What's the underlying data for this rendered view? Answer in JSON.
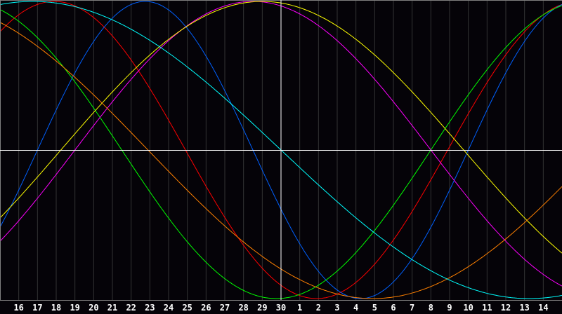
{
  "chart_data": {
    "type": "line",
    "title": "",
    "xlabel": "",
    "ylabel": "",
    "x_tick_labels": [
      "16",
      "17",
      "18",
      "19",
      "20",
      "21",
      "22",
      "23",
      "24",
      "25",
      "26",
      "27",
      "28",
      "29",
      "30",
      "1",
      "2",
      "3",
      "4",
      "5",
      "6",
      "7",
      "8",
      "9",
      "10",
      "11",
      "12",
      "13",
      "14"
    ],
    "x_range_days": [
      0,
      30
    ],
    "ylim": [
      -1,
      1
    ],
    "grid": true,
    "highlight_day": "30",
    "series": [
      {
        "color": "#ff0000",
        "period_days": 28,
        "peak_day_index": 2.9
      },
      {
        "color": "#0060ff",
        "period_days": 23,
        "peak_day_index": 7.75
      },
      {
        "color": "#00ff00",
        "period_days": 33,
        "peak_day_index": -1.75
      },
      {
        "color": "#ff00ff",
        "period_days": 38,
        "peak_day_index": 13.5
      },
      {
        "color": "#ffff00",
        "period_days": 43,
        "peak_day_index": 14.0
      },
      {
        "color": "#ff8000",
        "period_days": 48,
        "peak_day_index": -4.1
      },
      {
        "color": "#00ffff",
        "period_days": 53,
        "peak_day_index": 1.75
      }
    ],
    "colors": {
      "background": "#050308",
      "grid": "#333333",
      "axis": "#808080",
      "midline": "#ffffff"
    }
  }
}
